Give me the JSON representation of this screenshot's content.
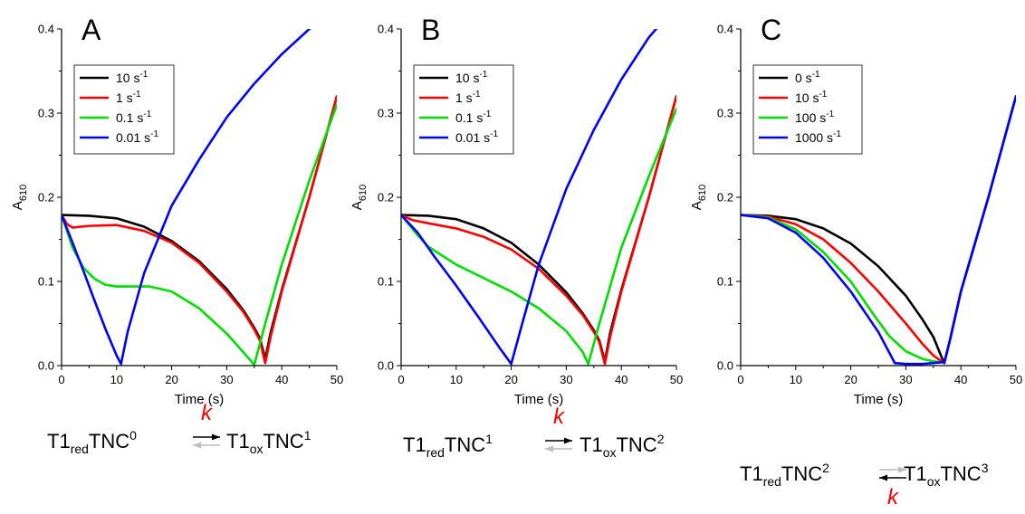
{
  "chart_data": [
    {
      "type": "line",
      "panel_label": "A",
      "xlabel": "Time (s)",
      "ylabel": "A",
      "ylabel_sub": "610",
      "xlim": [
        0,
        50
      ],
      "ylim": [
        0,
        0.4
      ],
      "xticks": [
        0,
        10,
        20,
        30,
        40,
        50
      ],
      "yticks": [
        0.0,
        0.1,
        0.2,
        0.3,
        0.4
      ],
      "legend_position": "upper-left",
      "series": [
        {
          "name": "10 s",
          "unit_sup": "-1",
          "color": "#000000",
          "points": [
            [
              0,
              0.179
            ],
            [
              5,
              0.178
            ],
            [
              10,
              0.175
            ],
            [
              15,
              0.165
            ],
            [
              20,
              0.148
            ],
            [
              25,
              0.124
            ],
            [
              30,
              0.091
            ],
            [
              33,
              0.066
            ],
            [
              35,
              0.045
            ],
            [
              36,
              0.033
            ],
            [
              37,
              0.008
            ],
            [
              38,
              0.04
            ],
            [
              40,
              0.09
            ],
            [
              45,
              0.2
            ],
            [
              50,
              0.32
            ]
          ]
        },
        {
          "name": "1 s",
          "unit_sup": "-1",
          "color": "#ff0000",
          "points": [
            [
              0,
              0.179
            ],
            [
              1,
              0.168
            ],
            [
              2,
              0.164
            ],
            [
              5,
              0.166
            ],
            [
              10,
              0.167
            ],
            [
              15,
              0.16
            ],
            [
              20,
              0.146
            ],
            [
              25,
              0.122
            ],
            [
              30,
              0.088
            ],
            [
              33,
              0.064
            ],
            [
              35,
              0.043
            ],
            [
              36,
              0.03
            ],
            [
              37,
              0.003
            ],
            [
              38,
              0.035
            ],
            [
              40,
              0.088
            ],
            [
              45,
              0.2
            ],
            [
              50,
              0.32
            ]
          ]
        },
        {
          "name": "0.1 s",
          "unit_sup": "-1",
          "color": "#00e000",
          "points": [
            [
              0,
              0.179
            ],
            [
              2,
              0.14
            ],
            [
              4,
              0.116
            ],
            [
              6,
              0.103
            ],
            [
              8,
              0.096
            ],
            [
              10,
              0.094
            ],
            [
              13,
              0.094
            ],
            [
              16,
              0.094
            ],
            [
              20,
              0.088
            ],
            [
              25,
              0.068
            ],
            [
              30,
              0.038
            ],
            [
              33,
              0.016
            ],
            [
              35,
              0.001
            ],
            [
              37,
              0.05
            ],
            [
              40,
              0.12
            ],
            [
              45,
              0.22
            ],
            [
              50,
              0.31
            ]
          ]
        },
        {
          "name": "0.01 s",
          "unit_sup": "-1",
          "color": "#0000ff",
          "points": [
            [
              0,
              0.179
            ],
            [
              2,
              0.146
            ],
            [
              4,
              0.112
            ],
            [
              6,
              0.077
            ],
            [
              8,
              0.043
            ],
            [
              10,
              0.012
            ],
            [
              10.8,
              0.002
            ],
            [
              12,
              0.04
            ],
            [
              15,
              0.11
            ],
            [
              20,
              0.19
            ],
            [
              25,
              0.245
            ],
            [
              30,
              0.295
            ],
            [
              35,
              0.335
            ],
            [
              40,
              0.37
            ],
            [
              45,
              0.4
            ],
            [
              46,
              0.405
            ]
          ]
        }
      ]
    },
    {
      "type": "line",
      "panel_label": "B",
      "xlabel": "Time (s)",
      "ylabel": "A",
      "ylabel_sub": "610",
      "xlim": [
        0,
        50
      ],
      "ylim": [
        0,
        0.4
      ],
      "xticks": [
        0,
        10,
        20,
        30,
        40,
        50
      ],
      "yticks": [
        0.0,
        0.1,
        0.2,
        0.3,
        0.4
      ],
      "legend_position": "upper-left",
      "series": [
        {
          "name": "10 s",
          "unit_sup": "-1",
          "color": "#000000",
          "points": [
            [
              0,
              0.179
            ],
            [
              5,
              0.178
            ],
            [
              10,
              0.174
            ],
            [
              15,
              0.163
            ],
            [
              20,
              0.146
            ],
            [
              25,
              0.12
            ],
            [
              30,
              0.087
            ],
            [
              33,
              0.062
            ],
            [
              35,
              0.042
            ],
            [
              36,
              0.03
            ],
            [
              37,
              0.005
            ],
            [
              38,
              0.04
            ],
            [
              40,
              0.09
            ],
            [
              45,
              0.2
            ],
            [
              50,
              0.32
            ]
          ]
        },
        {
          "name": "1 s",
          "unit_sup": "-1",
          "color": "#ff0000",
          "points": [
            [
              0,
              0.179
            ],
            [
              2,
              0.173
            ],
            [
              5,
              0.169
            ],
            [
              10,
              0.163
            ],
            [
              15,
              0.153
            ],
            [
              20,
              0.138
            ],
            [
              25,
              0.115
            ],
            [
              30,
              0.083
            ],
            [
              33,
              0.06
            ],
            [
              35,
              0.04
            ],
            [
              36,
              0.028
            ],
            [
              37,
              0.002
            ],
            [
              38,
              0.035
            ],
            [
              40,
              0.088
            ],
            [
              45,
              0.2
            ],
            [
              50,
              0.32
            ]
          ]
        },
        {
          "name": "0.1 s",
          "unit_sup": "-1",
          "color": "#00e000",
          "points": [
            [
              0,
              0.179
            ],
            [
              3,
              0.155
            ],
            [
              5,
              0.141
            ],
            [
              10,
              0.12
            ],
            [
              15,
              0.104
            ],
            [
              20,
              0.088
            ],
            [
              25,
              0.068
            ],
            [
              30,
              0.041
            ],
            [
              33,
              0.016
            ],
            [
              34,
              0.002
            ],
            [
              36,
              0.05
            ],
            [
              40,
              0.14
            ],
            [
              45,
              0.225
            ],
            [
              50,
              0.305
            ]
          ]
        },
        {
          "name": "0.01 s",
          "unit_sup": "-1",
          "color": "#0000ff",
          "points": [
            [
              0,
              0.179
            ],
            [
              3,
              0.158
            ],
            [
              6,
              0.13
            ],
            [
              10,
              0.095
            ],
            [
              14,
              0.058
            ],
            [
              18,
              0.02
            ],
            [
              20,
              0.002
            ],
            [
              22,
              0.05
            ],
            [
              25,
              0.12
            ],
            [
              30,
              0.21
            ],
            [
              35,
              0.28
            ],
            [
              40,
              0.34
            ],
            [
              45,
              0.39
            ],
            [
              47,
              0.405
            ]
          ]
        }
      ]
    },
    {
      "type": "line",
      "panel_label": "C",
      "xlabel": "Time (s)",
      "ylabel": "A",
      "ylabel_sub": "610",
      "xlim": [
        0,
        50
      ],
      "ylim": [
        0,
        0.4
      ],
      "xticks": [
        0,
        10,
        20,
        30,
        40,
        50
      ],
      "yticks": [
        0.0,
        0.1,
        0.2,
        0.3,
        0.4
      ],
      "legend_position": "upper-left",
      "series": [
        {
          "name": "0 s",
          "unit_sup": "-1",
          "color": "#000000",
          "points": [
            [
              0,
              0.179
            ],
            [
              5,
              0.178
            ],
            [
              10,
              0.174
            ],
            [
              15,
              0.163
            ],
            [
              20,
              0.145
            ],
            [
              25,
              0.118
            ],
            [
              30,
              0.083
            ],
            [
              33,
              0.055
            ],
            [
              35,
              0.034
            ],
            [
              36.5,
              0.01
            ],
            [
              37,
              0.003
            ],
            [
              38,
              0.03
            ],
            [
              40,
              0.088
            ],
            [
              45,
              0.2
            ],
            [
              50,
              0.32
            ]
          ]
        },
        {
          "name": "10 s",
          "unit_sup": "-1",
          "color": "#ff0000",
          "points": [
            [
              0,
              0.179
            ],
            [
              5,
              0.177
            ],
            [
              10,
              0.168
            ],
            [
              15,
              0.15
            ],
            [
              20,
              0.122
            ],
            [
              25,
              0.088
            ],
            [
              30,
              0.05
            ],
            [
              33,
              0.026
            ],
            [
              35,
              0.012
            ],
            [
              36.5,
              0.005
            ],
            [
              37,
              0.004
            ],
            [
              38,
              0.03
            ],
            [
              40,
              0.088
            ],
            [
              45,
              0.2
            ],
            [
              50,
              0.32
            ]
          ]
        },
        {
          "name": "100 s",
          "unit_sup": "-1",
          "color": "#00e000",
          "points": [
            [
              0,
              0.179
            ],
            [
              5,
              0.176
            ],
            [
              10,
              0.162
            ],
            [
              15,
              0.135
            ],
            [
              20,
              0.1
            ],
            [
              24,
              0.062
            ],
            [
              27,
              0.035
            ],
            [
              30,
              0.017
            ],
            [
              33,
              0.008
            ],
            [
              35,
              0.005
            ],
            [
              36.5,
              0.004
            ],
            [
              37,
              0.004
            ],
            [
              38,
              0.03
            ],
            [
              40,
              0.088
            ],
            [
              45,
              0.2
            ],
            [
              50,
              0.32
            ]
          ]
        },
        {
          "name": "1000 s",
          "unit_sup": "-1",
          "color": "#0000ff",
          "points": [
            [
              0,
              0.179
            ],
            [
              5,
              0.175
            ],
            [
              10,
              0.158
            ],
            [
              15,
              0.128
            ],
            [
              20,
              0.088
            ],
            [
              25,
              0.04
            ],
            [
              28,
              0.003
            ],
            [
              30,
              0.002
            ],
            [
              33,
              0.002
            ],
            [
              35,
              0.003
            ],
            [
              36.5,
              0.004
            ],
            [
              37,
              0.004
            ],
            [
              38,
              0.03
            ],
            [
              40,
              0.088
            ],
            [
              45,
              0.2
            ],
            [
              50,
              0.32
            ]
          ]
        }
      ]
    }
  ],
  "schemes": [
    {
      "left_base": "T1",
      "left_sub": "red",
      "left_mid": "TNC",
      "left_sup": "0",
      "right_base": "T1",
      "right_sub": "ox",
      "right_mid": "TNC",
      "right_sup": "1",
      "rate": "k",
      "k_position": "above",
      "forward_color": "#000000",
      "reverse_color": "#bbbbbb"
    },
    {
      "left_base": "T1",
      "left_sub": "red",
      "left_mid": "TNC",
      "left_sup": "1",
      "right_base": "T1",
      "right_sub": "ox",
      "right_mid": "TNC",
      "right_sup": "2",
      "rate": "k",
      "k_position": "above",
      "forward_color": "#000000",
      "reverse_color": "#bbbbbb"
    },
    {
      "left_base": "T1",
      "left_sub": "red",
      "left_mid": "TNC",
      "left_sup": "2",
      "right_base": "T1",
      "right_sub": "ox",
      "right_mid": "TNC",
      "right_sup": "3",
      "rate": "k",
      "k_position": "below",
      "forward_color": "#bbbbbb",
      "reverse_color": "#000000"
    }
  ]
}
